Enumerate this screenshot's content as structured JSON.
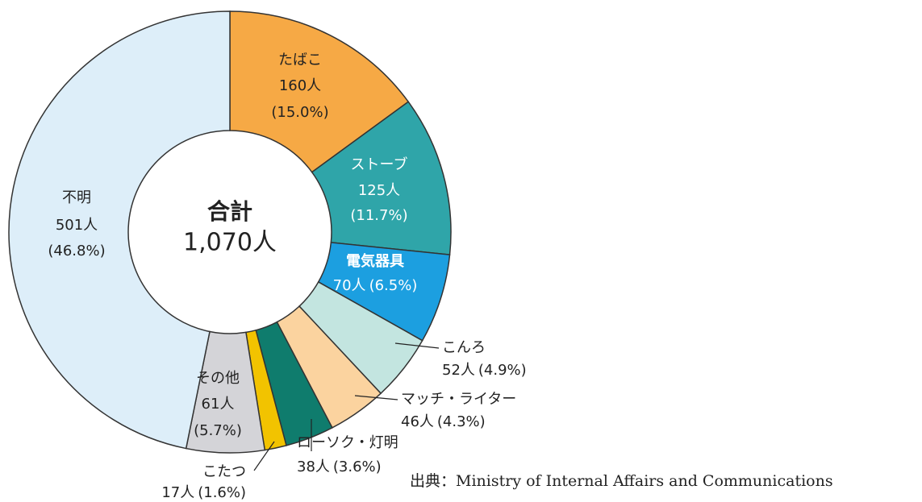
{
  "chart_data": {
    "type": "donut",
    "title": "合計",
    "center_label": "1,070人",
    "categories": [
      "たばこ",
      "ストーブ",
      "電気器具",
      "こんろ",
      "マッチ・ライター",
      "ローソク・灯明",
      "こたつ",
      "その他",
      "不明"
    ],
    "values": [
      160,
      125,
      70,
      52,
      46,
      38,
      17,
      61,
      501
    ],
    "value_labels": [
      "160人",
      "125人",
      "70人",
      "52人",
      "46人",
      "38人",
      "17人",
      "61人",
      "501人"
    ],
    "percent_labels": [
      "(15.0%)",
      "(11.7%)",
      "(6.5%)",
      "(4.9%)",
      "(4.3%)",
      "(3.6%)",
      "(1.6%)",
      "(5.7%)",
      "(46.8%)"
    ],
    "colors": [
      "#f6a945",
      "#2fa5a9",
      "#1c9fe0",
      "#c3e5e0",
      "#fbd39f",
      "#0f7c6d",
      "#f2c300",
      "#d4d4d8",
      "#ddeef9"
    ],
    "source": "出典：Ministry of Internal Affairs and Communications"
  }
}
